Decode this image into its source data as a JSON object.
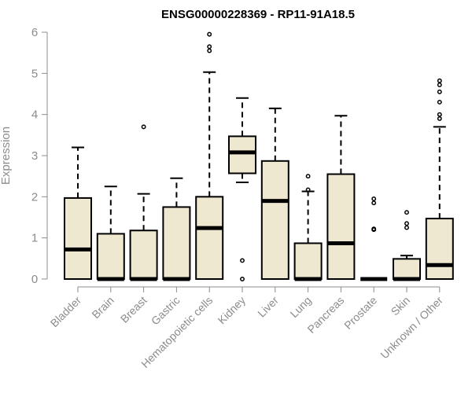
{
  "chart_data": {
    "type": "boxplot",
    "title": "ENSG00000228369 - RP11-91A18.5",
    "xlabel": "",
    "ylabel": "Expression",
    "ylim": [
      0,
      6
    ],
    "yticks": [
      0,
      1,
      2,
      3,
      4,
      5,
      6
    ],
    "grid": false,
    "box_fill": "#EEE8D0",
    "box_stroke": "#000000",
    "axis_color": "#8c8c8c",
    "categories": [
      "Bladder",
      "Brain",
      "Breast",
      "Gastric",
      "Hematopoietic cells",
      "Kidney",
      "Liver",
      "Lung",
      "Pancreas",
      "Prostate",
      "Skin",
      "Unknown / Other"
    ],
    "boxes": [
      {
        "name": "Bladder",
        "min": 0,
        "q1": 0,
        "median": 0.72,
        "q3": 1.97,
        "max": 3.2,
        "outliers": []
      },
      {
        "name": "Brain",
        "min": 0,
        "q1": 0,
        "median": 0,
        "q3": 1.1,
        "max": 2.25,
        "outliers": []
      },
      {
        "name": "Breast",
        "min": 0,
        "q1": 0,
        "median": 0,
        "q3": 1.18,
        "max": 2.07,
        "outliers": [
          3.7
        ]
      },
      {
        "name": "Gastric",
        "min": 0,
        "q1": 0,
        "median": 0,
        "q3": 1.75,
        "max": 2.45,
        "outliers": []
      },
      {
        "name": "Hematopoietic cells",
        "min": 0,
        "q1": 0,
        "median": 1.24,
        "q3": 2.0,
        "max": 5.03,
        "outliers": [
          5.55,
          5.65,
          5.95
        ]
      },
      {
        "name": "Kidney",
        "min": 2.35,
        "q1": 2.57,
        "median": 3.08,
        "q3": 3.47,
        "max": 4.4,
        "outliers": [
          0.45,
          0
        ]
      },
      {
        "name": "Liver",
        "min": 0,
        "q1": 0,
        "median": 1.9,
        "q3": 2.87,
        "max": 4.15,
        "outliers": []
      },
      {
        "name": "Lung",
        "min": 0,
        "q1": 0,
        "median": 0,
        "q3": 0.87,
        "max": 2.13,
        "outliers": [
          2.5,
          2.17
        ]
      },
      {
        "name": "Pancreas",
        "min": 0,
        "q1": 0,
        "median": 0.87,
        "q3": 2.55,
        "max": 3.97,
        "outliers": []
      },
      {
        "name": "Prostate",
        "min": 0,
        "q1": 0,
        "median": 0,
        "q3": 0,
        "max": 0,
        "outliers": [
          1.2,
          1.22,
          1.85,
          1.95
        ]
      },
      {
        "name": "Skin",
        "min": 0,
        "q1": 0,
        "median": 0,
        "q3": 0.49,
        "max": 0.57,
        "outliers": [
          1.25,
          1.35,
          1.62
        ]
      },
      {
        "name": "Unknown / Other",
        "min": 0,
        "q1": 0,
        "median": 0.34,
        "q3": 1.47,
        "max": 3.7,
        "outliers": [
          3.9,
          4.0,
          4.3,
          4.55,
          4.72,
          4.82
        ]
      }
    ]
  }
}
